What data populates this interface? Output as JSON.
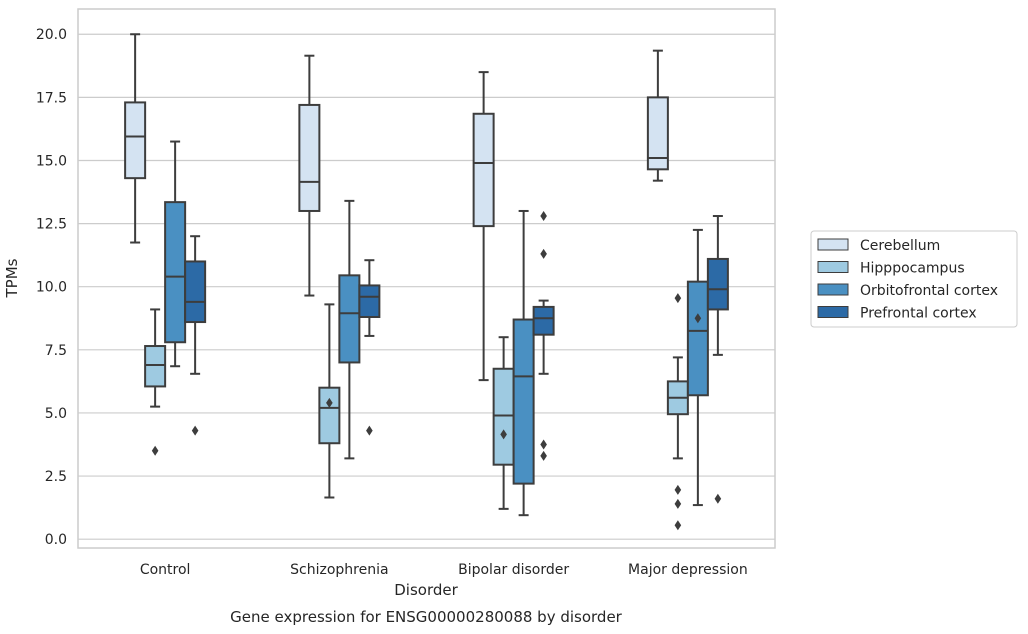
{
  "chart_data": {
    "type": "box",
    "title": "",
    "caption": "Gene expression for ENSG00000280088 by disorder",
    "xlabel": "Disorder",
    "ylabel": "TPMs",
    "ylim": [
      -0.35,
      21.0
    ],
    "yticks": [
      0.0,
      2.5,
      5.0,
      7.5,
      10.0,
      12.5,
      15.0,
      17.5,
      20.0
    ],
    "ytick_labels": [
      "0.0",
      "2.5",
      "5.0",
      "7.5",
      "10.0",
      "12.5",
      "15.0",
      "17.5",
      "20.0"
    ],
    "grid": true,
    "legend_position": "right",
    "categories": [
      "Control",
      "Schizophrenia",
      "Bipolar disorder",
      "Major depression"
    ],
    "series": [
      {
        "name": "Cerebellum",
        "color": "#d4e3f2",
        "boxes": [
          {
            "whislo": 11.75,
            "q1": 14.3,
            "med": 15.95,
            "q3": 17.3,
            "whishi": 20.0,
            "fliers": []
          },
          {
            "whislo": 9.65,
            "q1": 13.0,
            "med": 14.15,
            "q3": 17.2,
            "whishi": 19.15,
            "fliers": []
          },
          {
            "whislo": 6.3,
            "q1": 12.4,
            "med": 14.9,
            "q3": 16.85,
            "whishi": 18.5,
            "fliers": []
          },
          {
            "whislo": 14.2,
            "q1": 14.65,
            "med": 15.1,
            "q3": 17.5,
            "whishi": 19.35,
            "fliers": []
          }
        ]
      },
      {
        "name": "Hipppocampus",
        "color": "#9ecae1",
        "boxes": [
          {
            "whislo": 5.25,
            "q1": 6.05,
            "med": 6.9,
            "q3": 7.65,
            "whishi": 9.1,
            "fliers": [
              3.5
            ]
          },
          {
            "whislo": 1.65,
            "q1": 3.8,
            "med": 5.2,
            "q3": 6.0,
            "whishi": 9.3,
            "fliers": [
              5.4
            ]
          },
          {
            "whislo": 1.2,
            "q1": 2.95,
            "med": 4.9,
            "q3": 6.75,
            "whishi": 8.0,
            "fliers": [
              4.15
            ]
          },
          {
            "whislo": 3.2,
            "q1": 4.95,
            "med": 5.6,
            "q3": 6.25,
            "whishi": 7.2,
            "fliers": [
              9.55,
              1.95,
              1.4,
              0.55
            ]
          }
        ]
      },
      {
        "name": "Orbitofrontal cortex",
        "color": "#4a90c2",
        "boxes": [
          {
            "whislo": 6.85,
            "q1": 7.8,
            "med": 10.4,
            "q3": 13.35,
            "whishi": 15.75,
            "fliers": []
          },
          {
            "whislo": 3.2,
            "q1": 7.0,
            "med": 8.95,
            "q3": 10.45,
            "whishi": 13.4,
            "fliers": []
          },
          {
            "whislo": 0.95,
            "q1": 2.2,
            "med": 6.45,
            "q3": 8.7,
            "whishi": 13.0,
            "fliers": []
          },
          {
            "whislo": 1.35,
            "q1": 5.7,
            "med": 8.25,
            "q3": 10.2,
            "whishi": 12.25,
            "fliers": [
              8.75
            ]
          }
        ]
      },
      {
        "name": "Prefrontal cortex",
        "color": "#2c6aa6",
        "boxes": [
          {
            "whislo": 6.55,
            "q1": 8.6,
            "med": 9.4,
            "q3": 11.0,
            "whishi": 12.0,
            "fliers": [
              4.3
            ]
          },
          {
            "whislo": 8.05,
            "q1": 8.8,
            "med": 9.6,
            "q3": 10.05,
            "whishi": 11.05,
            "fliers": [
              4.3
            ]
          },
          {
            "whislo": 6.55,
            "q1": 8.1,
            "med": 8.75,
            "q3": 9.2,
            "whishi": 9.45,
            "fliers": [
              12.8,
              11.3,
              3.75,
              3.3
            ]
          },
          {
            "whislo": 7.3,
            "q1": 9.1,
            "med": 9.9,
            "q3": 11.1,
            "whishi": 12.8,
            "fliers": [
              1.6
            ]
          }
        ]
      }
    ]
  }
}
